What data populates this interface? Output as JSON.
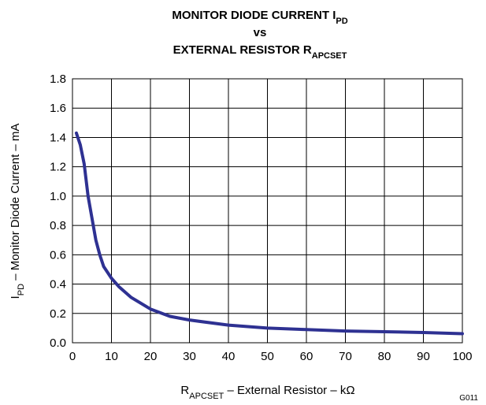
{
  "chart_data": {
    "type": "line",
    "title": [
      {
        "text": "MONITOR DIODE CURRENT I",
        "sub": "PD"
      },
      {
        "text": "vs"
      },
      {
        "text": "EXTERNAL RESISTOR R",
        "sub": "APCSET"
      }
    ],
    "xlabel": {
      "text": "R",
      "sub": "APCSET",
      "rest": " – External Resistor – kΩ"
    },
    "ylabel": {
      "text": "I",
      "sub": "PD",
      "rest": " – Monitor Diode Current – mA"
    },
    "note": "G011",
    "x": [
      1,
      2,
      3,
      4,
      5,
      6,
      7,
      8,
      10,
      12,
      15,
      20,
      25,
      30,
      40,
      50,
      60,
      70,
      80,
      90,
      100
    ],
    "series": [
      {
        "color": "#2e3192",
        "values": [
          1.43,
          1.35,
          1.22,
          1.0,
          0.85,
          0.7,
          0.6,
          0.52,
          0.44,
          0.38,
          0.31,
          0.23,
          0.18,
          0.155,
          0.12,
          0.1,
          0.09,
          0.08,
          0.075,
          0.07,
          0.062
        ]
      }
    ],
    "xlim": [
      0,
      100
    ],
    "xticks": [
      0,
      10,
      20,
      30,
      40,
      50,
      60,
      70,
      80,
      90,
      100
    ],
    "ylim": [
      0,
      1.8
    ],
    "yticks": [
      {
        "value": 0,
        "label": "0.0"
      },
      0.2,
      0.4,
      0.6,
      0.8,
      {
        "value": 1,
        "label": "1.0"
      },
      1.2,
      1.4,
      1.6,
      1.8
    ],
    "grid": true
  }
}
